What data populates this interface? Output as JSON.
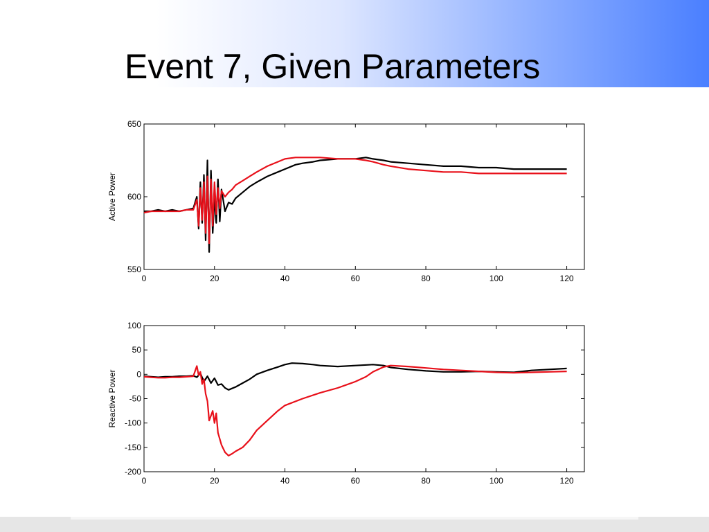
{
  "slide": {
    "title": "Event 7, Given Parameters",
    "banner_gradient": [
      "#ffffff",
      "#dde6ff",
      "#8fb0ff",
      "#4a7fff"
    ]
  },
  "chart_data": [
    {
      "type": "line",
      "title": "",
      "xlabel": "",
      "ylabel": "Active Power",
      "xlim": [
        0,
        125
      ],
      "ylim": [
        550,
        650
      ],
      "xticks": [
        0,
        20,
        40,
        60,
        80,
        100,
        120
      ],
      "yticks": [
        550,
        600,
        650
      ],
      "grid": false,
      "legend": "none",
      "series": [
        {
          "color": "#000000",
          "x": [
            0,
            2,
            4,
            6,
            8,
            10,
            12,
            14,
            15,
            15.5,
            16,
            16.5,
            17,
            17.5,
            18,
            18.5,
            19,
            19.5,
            20,
            20.5,
            21,
            21.5,
            22,
            23,
            24,
            25,
            26,
            28,
            30,
            32,
            35,
            38,
            40,
            43,
            45,
            48,
            50,
            55,
            60,
            63,
            65,
            68,
            70,
            75,
            80,
            85,
            90,
            95,
            100,
            105,
            110,
            115,
            120
          ],
          "y": [
            590,
            590,
            591,
            590,
            591,
            590,
            591,
            592,
            600,
            578,
            610,
            582,
            615,
            570,
            625,
            562,
            618,
            575,
            600,
            582,
            612,
            583,
            605,
            590,
            596,
            595,
            599,
            603,
            607,
            610,
            614,
            617,
            619,
            622,
            623,
            624,
            625,
            626,
            626,
            627,
            626,
            625,
            624,
            623,
            622,
            621,
            621,
            620,
            620,
            619,
            619,
            619,
            619
          ]
        },
        {
          "color": "#e8101a",
          "x": [
            0,
            2,
            4,
            6,
            8,
            10,
            12,
            14,
            15,
            15.5,
            16,
            16.5,
            17,
            17.5,
            18,
            18.5,
            19,
            19.5,
            20,
            20.5,
            21,
            21.5,
            22,
            23,
            24,
            25,
            26,
            28,
            30,
            32,
            35,
            38,
            40,
            43,
            45,
            48,
            50,
            55,
            60,
            63,
            65,
            68,
            70,
            75,
            80,
            85,
            90,
            95,
            100,
            105,
            110,
            115,
            120
          ],
          "y": [
            589,
            590,
            590,
            590,
            590,
            590,
            591,
            591,
            598,
            580,
            606,
            584,
            610,
            575,
            614,
            568,
            612,
            580,
            610,
            588,
            606,
            592,
            604,
            600,
            603,
            605,
            608,
            611,
            614,
            617,
            621,
            624,
            626,
            627,
            627,
            627,
            627,
            626,
            626,
            625,
            624,
            622,
            621,
            619,
            618,
            617,
            617,
            616,
            616,
            616,
            616,
            616,
            616
          ]
        }
      ]
    },
    {
      "type": "line",
      "title": "",
      "xlabel": "",
      "ylabel": "Reactive Power",
      "xlim": [
        0,
        125
      ],
      "ylim": [
        -200,
        100
      ],
      "xticks": [
        0,
        20,
        40,
        60,
        80,
        100,
        120
      ],
      "yticks": [
        -200,
        -150,
        -100,
        -50,
        0,
        50,
        100
      ],
      "grid": false,
      "legend": "none",
      "series": [
        {
          "color": "#000000",
          "x": [
            0,
            2,
            4,
            6,
            8,
            10,
            12,
            14,
            15,
            16,
            17,
            18,
            19,
            20,
            21,
            22,
            23,
            24,
            25,
            26,
            28,
            30,
            32,
            35,
            38,
            40,
            42,
            45,
            48,
            50,
            55,
            60,
            65,
            68,
            70,
            75,
            80,
            85,
            90,
            95,
            100,
            105,
            110,
            115,
            120
          ],
          "y": [
            -4,
            -5,
            -6,
            -5,
            -5,
            -4,
            -4,
            -3,
            -6,
            2,
            -15,
            -4,
            -18,
            -8,
            -22,
            -20,
            -28,
            -32,
            -29,
            -26,
            -18,
            -10,
            0,
            8,
            15,
            20,
            23,
            22,
            20,
            18,
            16,
            18,
            20,
            18,
            14,
            10,
            7,
            5,
            5,
            6,
            5,
            4,
            8,
            10,
            12
          ]
        },
        {
          "color": "#e8101a",
          "x": [
            0,
            2,
            4,
            6,
            8,
            10,
            12,
            14,
            15,
            15.5,
            16,
            16.5,
            17,
            17.5,
            18,
            18.5,
            19,
            19.5,
            20,
            20.5,
            21,
            22,
            23,
            24,
            25,
            26,
            28,
            30,
            32,
            35,
            38,
            40,
            45,
            50,
            55,
            60,
            63,
            65,
            68,
            70,
            75,
            80,
            85,
            90,
            95,
            100,
            105,
            110,
            115,
            120
          ],
          "y": [
            -5,
            -6,
            -7,
            -7,
            -6,
            -6,
            -5,
            -4,
            17,
            -2,
            5,
            -20,
            -10,
            -40,
            -55,
            -95,
            -85,
            -75,
            -100,
            -80,
            -120,
            -145,
            -160,
            -167,
            -163,
            -158,
            -150,
            -135,
            -115,
            -95,
            -75,
            -64,
            -50,
            -38,
            -28,
            -15,
            -5,
            5,
            15,
            18,
            16,
            13,
            10,
            8,
            6,
            4,
            3,
            4,
            5,
            6
          ]
        }
      ]
    }
  ]
}
